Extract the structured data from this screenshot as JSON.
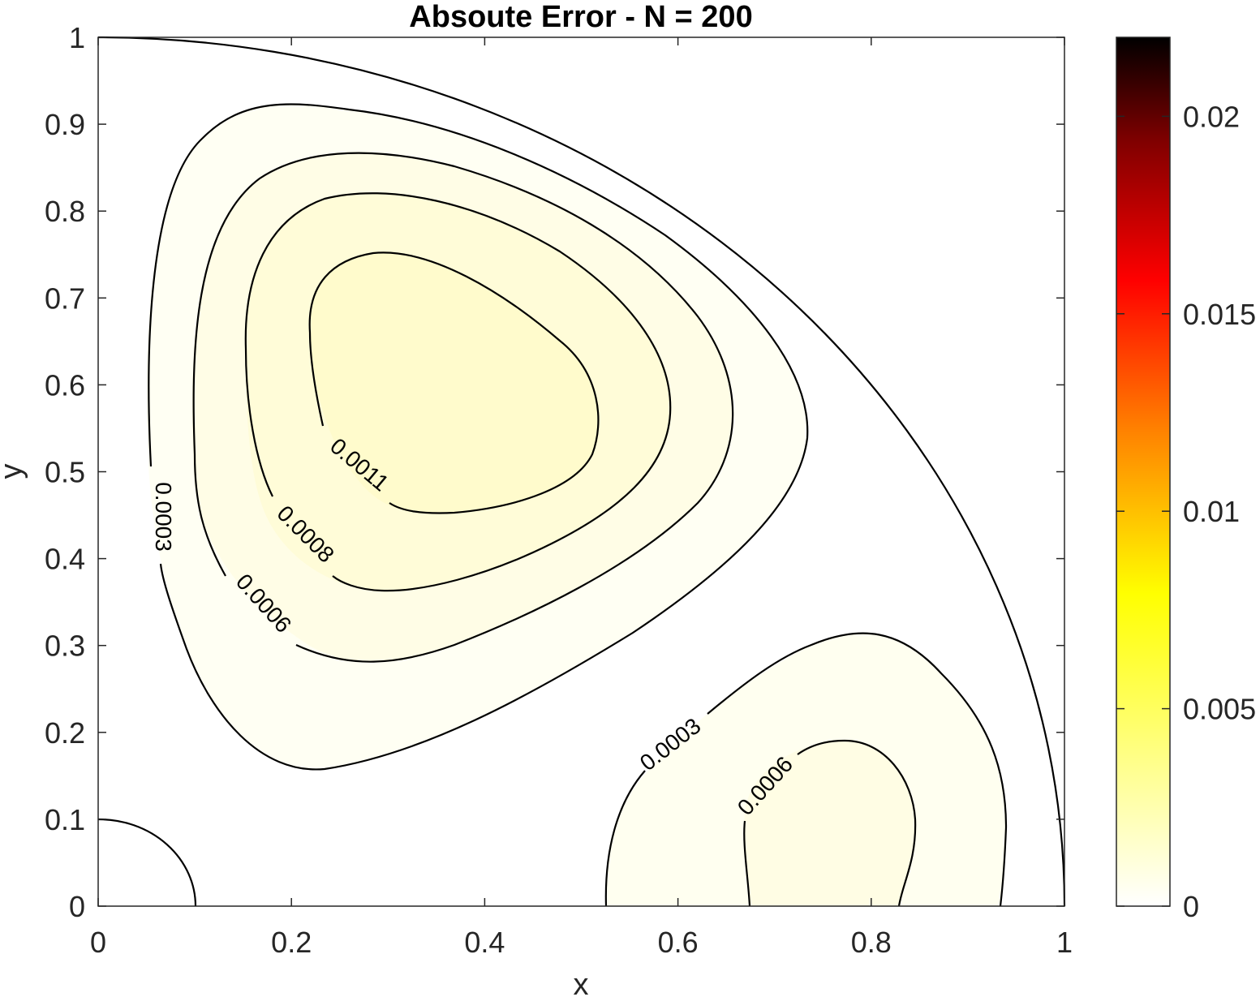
{
  "chart_data": {
    "type": "contour",
    "title": "Absoute Error - N = 200",
    "xlabel": "x",
    "ylabel": "y",
    "xlim": [
      0,
      1
    ],
    "ylim": [
      0,
      1
    ],
    "x_ticks": [
      "0",
      "0.2",
      "0.4",
      "0.6",
      "0.8",
      "1"
    ],
    "y_ticks": [
      "0",
      "0.1",
      "0.2",
      "0.3",
      "0.4",
      "0.5",
      "0.6",
      "0.7",
      "0.8",
      "0.9",
      "1"
    ],
    "domain": "quarter annulus, inner radius 0.1, outer radius 1",
    "colormap": "hot (reversed)",
    "colorbar": {
      "range": [
        0,
        0.022
      ],
      "ticks": [
        "0",
        "0.005",
        "0.01",
        "0.015",
        "0.02"
      ]
    },
    "contour_labels": [
      {
        "level": "0.0003",
        "region": "upper-left"
      },
      {
        "level": "0.0006",
        "region": "upper-left"
      },
      {
        "level": "0.0008",
        "region": "upper-left"
      },
      {
        "level": "0.0011",
        "region": "upper-left"
      },
      {
        "level": "0.0003",
        "region": "lower-right"
      },
      {
        "level": "0.0006",
        "region": "lower-right"
      }
    ],
    "grid": false
  }
}
